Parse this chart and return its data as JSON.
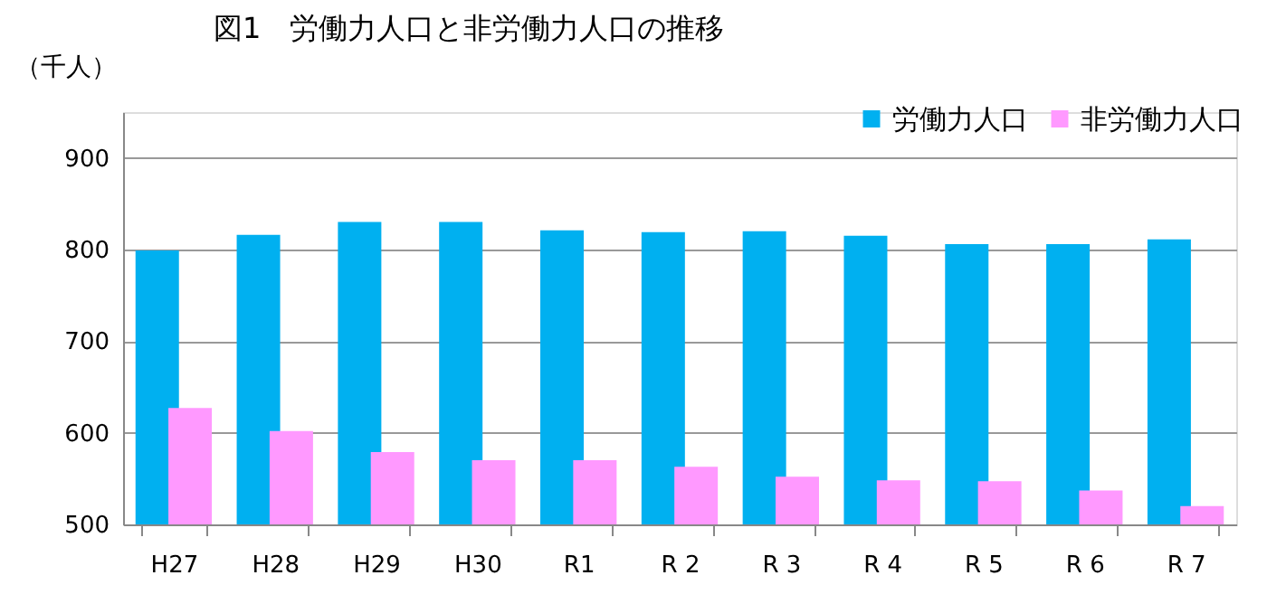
{
  "chart_data": {
    "type": "bar",
    "title": "図1　労働力人口と非労働力人口の推移",
    "ylabel": "（千人）",
    "categories": [
      "H27",
      "H28",
      "H29",
      "H30",
      "R1",
      "R 2",
      "R 3",
      "R 4",
      "R 5",
      "R 6",
      "R 7"
    ],
    "series": [
      {
        "name": "労働力人口",
        "color": "#00b0f0",
        "values": [
          799,
          816,
          830,
          830,
          821,
          819,
          820,
          815,
          806,
          806,
          811
        ]
      },
      {
        "name": "非労働力人口",
        "color": "#ff99ff",
        "values": [
          627,
          602,
          579,
          570,
          570,
          563,
          552,
          548,
          547,
          537,
          520
        ]
      }
    ],
    "ylim": [
      500,
      950
    ],
    "yticks": [
      500,
      600,
      700,
      800,
      900
    ],
    "grid": "y",
    "legend": "top right"
  }
}
